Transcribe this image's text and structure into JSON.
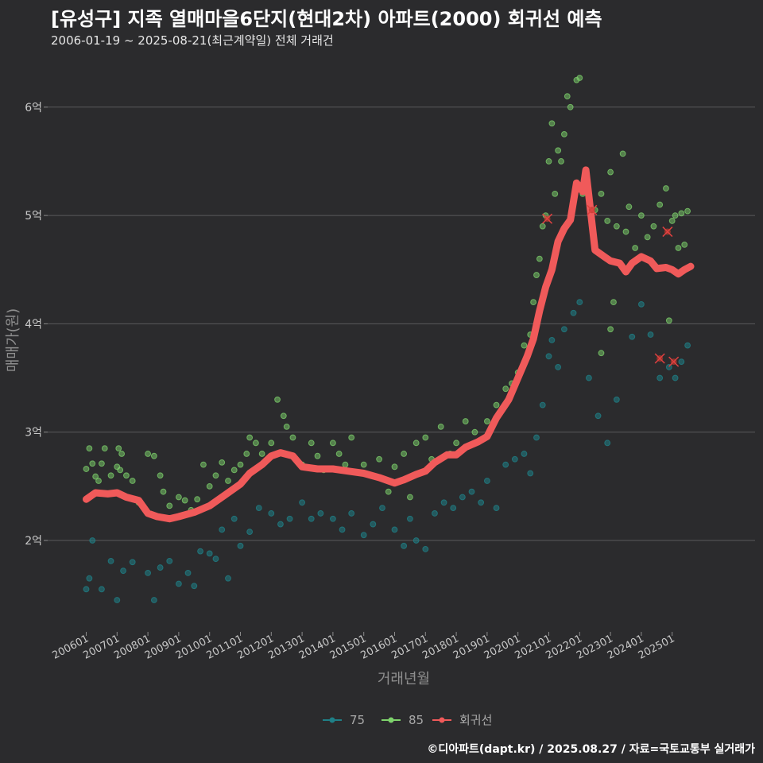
{
  "header": {
    "title": "[유성구] 지족 열매마을6단지(현대2차) 아파트(2000) 회귀선 예측",
    "subtitle": "2006-01-19 ~ 2025-08-21(최근계약일) 전체 거래건"
  },
  "footer": {
    "credit": "©디아파트(dapt.kr) / 2025.08.27 / 자료=국토교통부 실거래가"
  },
  "colors": {
    "background": "#2b2b2d",
    "grid": "#5a5a5c",
    "s75": "#1f7f86",
    "s85": "#7ed36c",
    "regression": "#f05a5a"
  },
  "chart_data": {
    "type": "scatter",
    "xlabel": "거래년월",
    "ylabel": "매매가(원)",
    "ylim": [
      1.2,
      6.5
    ],
    "y_ticks": [
      {
        "value": 2,
        "label": "2억"
      },
      {
        "value": 3,
        "label": "3억"
      },
      {
        "value": 4,
        "label": "4억"
      },
      {
        "value": 5,
        "label": "5억"
      },
      {
        "value": 6,
        "label": "6억"
      }
    ],
    "x_ticks": [
      "200601",
      "200701",
      "200801",
      "200901",
      "201001",
      "201101",
      "201201",
      "201301",
      "201401",
      "201501",
      "201601",
      "201701",
      "201801",
      "201901",
      "202001",
      "202101",
      "202201",
      "202301",
      "202401",
      "202501"
    ],
    "legend": {
      "position": "bottom",
      "items": [
        "75",
        "85",
        "회귀선"
      ]
    },
    "regression": {
      "name": "회귀선",
      "points": [
        [
          2006.0,
          2.38
        ],
        [
          2006.3,
          2.44
        ],
        [
          2006.7,
          2.43
        ],
        [
          2007.0,
          2.44
        ],
        [
          2007.3,
          2.4
        ],
        [
          2007.7,
          2.37
        ],
        [
          2008.0,
          2.25
        ],
        [
          2008.3,
          2.22
        ],
        [
          2008.7,
          2.2
        ],
        [
          2009.0,
          2.22
        ],
        [
          2009.5,
          2.26
        ],
        [
          2010.0,
          2.32
        ],
        [
          2010.5,
          2.42
        ],
        [
          2011.0,
          2.52
        ],
        [
          2011.3,
          2.62
        ],
        [
          2011.7,
          2.7
        ],
        [
          2012.0,
          2.78
        ],
        [
          2012.3,
          2.81
        ],
        [
          2012.7,
          2.78
        ],
        [
          2013.0,
          2.68
        ],
        [
          2013.5,
          2.66
        ],
        [
          2014.0,
          2.66
        ],
        [
          2014.5,
          2.64
        ],
        [
          2015.0,
          2.62
        ],
        [
          2015.5,
          2.58
        ],
        [
          2016.0,
          2.53
        ],
        [
          2016.3,
          2.56
        ],
        [
          2016.7,
          2.61
        ],
        [
          2017.0,
          2.64
        ],
        [
          2017.3,
          2.72
        ],
        [
          2017.7,
          2.79
        ],
        [
          2018.0,
          2.79
        ],
        [
          2018.3,
          2.86
        ],
        [
          2018.7,
          2.91
        ],
        [
          2019.0,
          2.96
        ],
        [
          2019.3,
          3.13
        ],
        [
          2019.7,
          3.3
        ],
        [
          2020.0,
          3.5
        ],
        [
          2020.3,
          3.7
        ],
        [
          2020.5,
          3.86
        ],
        [
          2020.7,
          4.12
        ],
        [
          2020.9,
          4.34
        ],
        [
          2021.1,
          4.5
        ],
        [
          2021.3,
          4.76
        ],
        [
          2021.5,
          4.88
        ],
        [
          2021.7,
          4.96
        ],
        [
          2021.9,
          5.3
        ],
        [
          2022.1,
          5.22
        ],
        [
          2022.2,
          5.42
        ],
        [
          2022.35,
          5.05
        ],
        [
          2022.5,
          4.68
        ],
        [
          2022.8,
          4.62
        ],
        [
          2023.0,
          4.58
        ],
        [
          2023.3,
          4.56
        ],
        [
          2023.5,
          4.48
        ],
        [
          2023.7,
          4.56
        ],
        [
          2024.0,
          4.62
        ],
        [
          2024.3,
          4.58
        ],
        [
          2024.5,
          4.51
        ],
        [
          2024.8,
          4.52
        ],
        [
          2025.0,
          4.5
        ],
        [
          2025.2,
          4.46
        ],
        [
          2025.4,
          4.5
        ],
        [
          2025.6,
          4.53
        ]
      ]
    },
    "series": [
      {
        "name": "85",
        "points": [
          [
            2006.0,
            2.66
          ],
          [
            2006.1,
            2.85
          ],
          [
            2006.2,
            2.71
          ],
          [
            2006.3,
            2.59
          ],
          [
            2006.4,
            2.55
          ],
          [
            2006.5,
            2.71
          ],
          [
            2006.6,
            2.85
          ],
          [
            2006.8,
            2.6
          ],
          [
            2007.0,
            2.68
          ],
          [
            2007.05,
            2.85
          ],
          [
            2007.1,
            2.65
          ],
          [
            2007.15,
            2.8
          ],
          [
            2007.3,
            2.6
          ],
          [
            2007.5,
            2.55
          ],
          [
            2007.7,
            2.35
          ],
          [
            2008.0,
            2.8
          ],
          [
            2008.2,
            2.78
          ],
          [
            2008.4,
            2.6
          ],
          [
            2008.5,
            2.45
          ],
          [
            2008.7,
            2.32
          ],
          [
            2009.0,
            2.4
          ],
          [
            2009.2,
            2.37
          ],
          [
            2009.4,
            2.28
          ],
          [
            2009.6,
            2.38
          ],
          [
            2009.8,
            2.7
          ],
          [
            2010.0,
            2.5
          ],
          [
            2010.2,
            2.6
          ],
          [
            2010.4,
            2.72
          ],
          [
            2010.6,
            2.55
          ],
          [
            2010.8,
            2.65
          ],
          [
            2011.0,
            2.7
          ],
          [
            2011.2,
            2.8
          ],
          [
            2011.3,
            2.95
          ],
          [
            2011.5,
            2.9
          ],
          [
            2011.7,
            2.8
          ],
          [
            2012.0,
            2.9
          ],
          [
            2012.2,
            3.3
          ],
          [
            2012.4,
            3.15
          ],
          [
            2012.5,
            3.05
          ],
          [
            2012.7,
            2.95
          ],
          [
            2013.0,
            2.7
          ],
          [
            2013.3,
            2.9
          ],
          [
            2013.5,
            2.78
          ],
          [
            2013.7,
            2.65
          ],
          [
            2014.0,
            2.9
          ],
          [
            2014.2,
            2.8
          ],
          [
            2014.4,
            2.7
          ],
          [
            2014.6,
            2.95
          ],
          [
            2015.0,
            2.7
          ],
          [
            2015.2,
            2.6
          ],
          [
            2015.5,
            2.75
          ],
          [
            2015.8,
            2.45
          ],
          [
            2016.0,
            2.68
          ],
          [
            2016.3,
            2.8
          ],
          [
            2016.5,
            2.4
          ],
          [
            2016.7,
            2.9
          ],
          [
            2017.0,
            2.95
          ],
          [
            2017.2,
            2.75
          ],
          [
            2017.5,
            3.05
          ],
          [
            2017.8,
            2.8
          ],
          [
            2018.0,
            2.9
          ],
          [
            2018.3,
            3.1
          ],
          [
            2018.6,
            3.0
          ],
          [
            2019.0,
            3.1
          ],
          [
            2019.3,
            3.25
          ],
          [
            2019.6,
            3.4
          ],
          [
            2019.8,
            3.45
          ],
          [
            2020.0,
            3.55
          ],
          [
            2020.2,
            3.8
          ],
          [
            2020.4,
            3.9
          ],
          [
            2020.5,
            4.2
          ],
          [
            2020.6,
            4.45
          ],
          [
            2020.7,
            4.6
          ],
          [
            2020.8,
            4.9
          ],
          [
            2020.9,
            5.0
          ],
          [
            2021.0,
            5.5
          ],
          [
            2021.1,
            5.85
          ],
          [
            2021.2,
            5.2
          ],
          [
            2021.3,
            5.6
          ],
          [
            2021.4,
            5.5
          ],
          [
            2021.5,
            5.75
          ],
          [
            2021.6,
            6.1
          ],
          [
            2021.7,
            6.0
          ],
          [
            2021.9,
            6.25
          ],
          [
            2022.0,
            6.27
          ],
          [
            2022.1,
            5.2
          ],
          [
            2022.5,
            5.05
          ],
          [
            2022.7,
            5.2
          ],
          [
            2022.9,
            4.95
          ],
          [
            2023.0,
            5.4
          ],
          [
            2023.2,
            4.9
          ],
          [
            2023.4,
            5.57
          ],
          [
            2023.5,
            4.85
          ],
          [
            2023.6,
            5.08
          ],
          [
            2023.8,
            4.7
          ],
          [
            2024.0,
            5.0
          ],
          [
            2024.2,
            4.8
          ],
          [
            2024.4,
            4.9
          ],
          [
            2024.6,
            5.1
          ],
          [
            2024.8,
            5.25
          ],
          [
            2025.0,
            4.95
          ],
          [
            2025.1,
            5.0
          ],
          [
            2025.2,
            4.7
          ],
          [
            2025.3,
            5.02
          ],
          [
            2025.4,
            4.73
          ],
          [
            2025.5,
            5.04
          ],
          [
            2024.9,
            4.03
          ],
          [
            2023.1,
            4.2
          ],
          [
            2023.0,
            3.95
          ],
          [
            2022.7,
            3.73
          ]
        ]
      },
      {
        "name": "75",
        "points": [
          [
            2006.0,
            1.55
          ],
          [
            2006.1,
            1.65
          ],
          [
            2006.2,
            2.0
          ],
          [
            2006.5,
            1.55
          ],
          [
            2006.8,
            1.81
          ],
          [
            2007.0,
            1.45
          ],
          [
            2007.2,
            1.72
          ],
          [
            2007.5,
            1.8
          ],
          [
            2008.0,
            1.7
          ],
          [
            2008.2,
            1.45
          ],
          [
            2008.4,
            1.75
          ],
          [
            2008.7,
            1.81
          ],
          [
            2009.0,
            1.6
          ],
          [
            2009.3,
            1.7
          ],
          [
            2009.5,
            1.58
          ],
          [
            2009.7,
            1.9
          ],
          [
            2010.0,
            1.88
          ],
          [
            2010.2,
            1.83
          ],
          [
            2010.4,
            2.1
          ],
          [
            2010.6,
            1.65
          ],
          [
            2010.8,
            2.2
          ],
          [
            2011.0,
            1.95
          ],
          [
            2011.3,
            2.08
          ],
          [
            2011.6,
            2.3
          ],
          [
            2012.0,
            2.25
          ],
          [
            2012.3,
            2.15
          ],
          [
            2012.6,
            2.2
          ],
          [
            2013.0,
            2.35
          ],
          [
            2013.3,
            2.2
          ],
          [
            2013.6,
            2.25
          ],
          [
            2014.0,
            2.2
          ],
          [
            2014.3,
            2.1
          ],
          [
            2014.6,
            2.25
          ],
          [
            2015.0,
            2.05
          ],
          [
            2015.3,
            2.15
          ],
          [
            2015.6,
            2.3
          ],
          [
            2016.0,
            2.1
          ],
          [
            2016.3,
            1.95
          ],
          [
            2016.5,
            2.2
          ],
          [
            2016.7,
            2.0
          ],
          [
            2017.0,
            1.92
          ],
          [
            2017.3,
            2.25
          ],
          [
            2017.6,
            2.35
          ],
          [
            2017.9,
            2.3
          ],
          [
            2018.2,
            2.4
          ],
          [
            2018.5,
            2.45
          ],
          [
            2018.8,
            2.35
          ],
          [
            2019.0,
            2.55
          ],
          [
            2019.3,
            2.3
          ],
          [
            2019.6,
            2.7
          ],
          [
            2019.9,
            2.75
          ],
          [
            2020.2,
            2.8
          ],
          [
            2020.4,
            2.62
          ],
          [
            2020.6,
            2.95
          ],
          [
            2020.8,
            3.25
          ],
          [
            2021.0,
            3.7
          ],
          [
            2021.1,
            3.85
          ],
          [
            2021.3,
            3.6
          ],
          [
            2021.5,
            3.95
          ],
          [
            2021.8,
            4.1
          ],
          [
            2022.0,
            4.2
          ],
          [
            2022.3,
            3.5
          ],
          [
            2022.6,
            3.15
          ],
          [
            2022.9,
            2.9
          ],
          [
            2023.2,
            3.3
          ],
          [
            2023.7,
            3.88
          ],
          [
            2024.0,
            4.18
          ],
          [
            2024.3,
            3.9
          ],
          [
            2024.6,
            3.5
          ],
          [
            2024.9,
            3.6
          ],
          [
            2025.1,
            3.5
          ],
          [
            2025.3,
            3.65
          ],
          [
            2025.5,
            3.8
          ]
        ]
      }
    ],
    "highlight_marks": [
      [
        2020.95,
        4.97
      ],
      [
        2022.4,
        5.05
      ],
      [
        2024.6,
        3.68
      ],
      [
        2024.85,
        4.85
      ],
      [
        2025.05,
        3.65
      ]
    ]
  }
}
